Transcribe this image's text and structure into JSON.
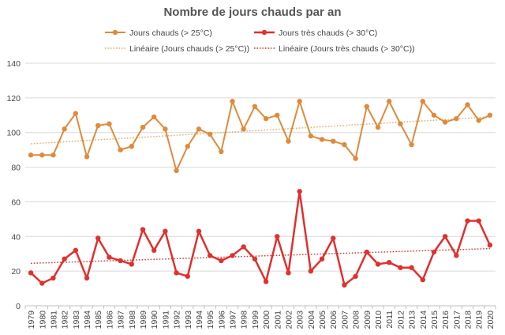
{
  "chart_data": {
    "type": "line",
    "title": "Nombre de jours chauds par an",
    "x": [
      "1979",
      "1980",
      "1981",
      "1982",
      "1983",
      "1984",
      "1985",
      "1986",
      "1987",
      "1988",
      "1989",
      "1990",
      "1991",
      "1992",
      "1993",
      "1994",
      "1995",
      "1996",
      "1997",
      "1998",
      "1999",
      "2000",
      "2001",
      "2002",
      "2003",
      "2004",
      "2005",
      "2006",
      "2007",
      "2008",
      "2009",
      "2010",
      "2011",
      "2012",
      "2013",
      "2014",
      "2015",
      "2016",
      "2017",
      "2018",
      "2019",
      "2020"
    ],
    "ylim": [
      0,
      140
    ],
    "yticks": [
      0,
      20,
      40,
      60,
      80,
      100,
      120,
      140
    ],
    "grid": true,
    "legend_position": "top",
    "series": [
      {
        "name": "Jours chauds (> 25°C)",
        "color": "#E08A3C",
        "values": [
          87,
          87,
          87,
          102,
          111,
          86,
          104,
          105,
          90,
          92,
          103,
          109,
          102,
          78,
          92,
          102,
          99,
          89,
          118,
          102,
          115,
          108,
          110,
          95,
          118,
          98,
          96,
          95,
          93,
          85,
          115,
          103,
          118,
          105,
          93,
          118,
          110,
          106,
          108,
          116,
          107,
          110
        ]
      },
      {
        "name": "Jours très chauds (> 30°C)",
        "color": "#E0302F",
        "values": [
          19,
          13,
          16,
          27,
          32,
          16,
          39,
          28,
          26,
          24,
          44,
          32,
          43,
          19,
          17,
          43,
          29,
          26,
          29,
          34,
          27,
          14,
          40,
          19,
          66,
          20,
          27,
          39,
          12,
          17,
          31,
          24,
          25,
          22,
          22,
          15,
          31,
          40,
          29,
          49,
          49,
          35
        ]
      }
    ],
    "trendlines": [
      {
        "name": "Linéaire (Jours chauds (> 25°C))",
        "color": "#E9A867",
        "start": 93.5,
        "end": 109
      },
      {
        "name": "Linéaire (Jours très chauds (> 30°C))",
        "color": "#E0302F",
        "start": 24.5,
        "end": 33
      }
    ]
  }
}
